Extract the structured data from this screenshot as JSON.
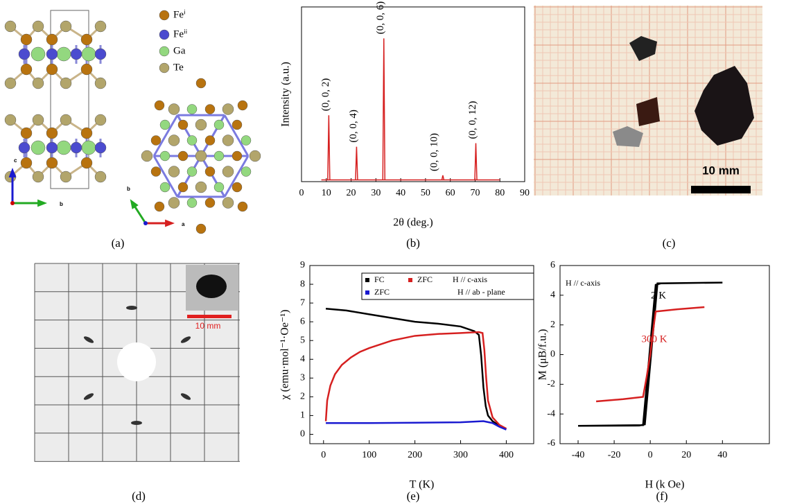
{
  "panels": [
    "(a)",
    "(b)",
    "(c)",
    "(d)",
    "(e)",
    "(f)"
  ],
  "structure": {
    "legend": [
      {
        "label": "Feⁱ",
        "color": "#b8730f"
      },
      {
        "label": "Feⁱⁱ",
        "color": "#4b4bcf"
      },
      {
        "label": "Ga",
        "color": "#93d87f"
      },
      {
        "label": "Te",
        "color": "#b2a56b"
      }
    ],
    "axes": [
      "c",
      "b",
      "b",
      "a"
    ]
  },
  "photo": {
    "scale_label": "10 mm"
  },
  "laue": {
    "scale_label": "10 mm"
  },
  "chart_data": [
    {
      "type": "spectrum",
      "xlabel": "2θ (deg.)",
      "ylabel": "Intensity (a.u.)",
      "xlim": [
        0,
        90
      ],
      "xticks": [
        0,
        10,
        20,
        30,
        40,
        50,
        60,
        70,
        80,
        90
      ],
      "ylim": [
        0,
        100
      ],
      "color": "#d62020",
      "baseline": 1,
      "x_extent": [
        8,
        80
      ],
      "peaks": {
        "x": [
          11,
          22.2,
          33.2,
          57,
          70.3
        ],
        "values": [
          38,
          20,
          82,
          3.6,
          22
        ],
        "labels": [
          "(0, 0, 2)",
          "(0, 0, 4)",
          "(0, 0, 6)",
          "(0, 0, 10)",
          "(0, 0, 12)"
        ]
      }
    },
    {
      "type": "line",
      "xlabel": "T (K)",
      "ylabel": "χ (emu·mol⁻¹·Oe⁻¹)",
      "xlim": [
        -30,
        460
      ],
      "xticks": [
        0,
        100,
        200,
        300,
        400
      ],
      "ylim": [
        -0.5,
        9
      ],
      "yticks": [
        0,
        1,
        2,
        3,
        4,
        5,
        6,
        7,
        8,
        9
      ],
      "legend_notes": [
        "H // c-axis",
        "H // ab - plane"
      ],
      "series": [
        {
          "name": "FC",
          "color": "#000000",
          "x": [
            5,
            50,
            100,
            150,
            200,
            250,
            300,
            330,
            340,
            345,
            350,
            355,
            360,
            370,
            385,
            400
          ],
          "values": [
            6.7,
            6.6,
            6.4,
            6.2,
            6.0,
            5.9,
            5.75,
            5.5,
            5.3,
            4.2,
            2.5,
            1.5,
            1.0,
            0.7,
            0.45,
            0.3
          ]
        },
        {
          "name": "ZFC",
          "color": "#d62020",
          "x": [
            5,
            8,
            15,
            25,
            40,
            60,
            80,
            100,
            150,
            200,
            250,
            300,
            340,
            348,
            352,
            356,
            360,
            370,
            385,
            400
          ],
          "values": [
            0.7,
            1.8,
            2.6,
            3.2,
            3.7,
            4.1,
            4.4,
            4.6,
            5.0,
            5.25,
            5.35,
            5.4,
            5.45,
            5.4,
            4.5,
            3.0,
            1.8,
            0.9,
            0.5,
            0.3
          ]
        },
        {
          "name": "ZFC",
          "color": "#1a1ad0",
          "x": [
            5,
            100,
            200,
            300,
            350,
            370,
            385,
            400
          ],
          "values": [
            0.6,
            0.6,
            0.62,
            0.64,
            0.7,
            0.6,
            0.4,
            0.25
          ]
        }
      ]
    },
    {
      "type": "line",
      "xlabel": "H (k Oe)",
      "ylabel": "M (μB/f.u.)",
      "annotation": "H // c-axis",
      "xlim": [
        -50,
        66
      ],
      "xticks": [
        -40,
        -20,
        0,
        20,
        40
      ],
      "ylim": [
        -6,
        6
      ],
      "yticks": [
        -6,
        -4,
        -2,
        0,
        2,
        4,
        6
      ],
      "series": [
        {
          "name": "2 K",
          "color": "#000000",
          "x": [
            40,
            4,
            -3,
            -6,
            -40,
            -4,
            3,
            6,
            40
          ],
          "values": [
            4.85,
            4.8,
            -4.7,
            -4.78,
            -4.8,
            -4.75,
            4.7,
            4.8,
            4.85
          ]
        },
        {
          "name": "300 K",
          "color": "#d62020",
          "x": [
            -30,
            -15,
            -4,
            -2,
            0,
            2,
            3,
            15,
            30
          ],
          "values": [
            -3.15,
            -3.0,
            -2.85,
            -1.5,
            0,
            2.0,
            2.9,
            3.05,
            3.2
          ]
        }
      ]
    }
  ]
}
